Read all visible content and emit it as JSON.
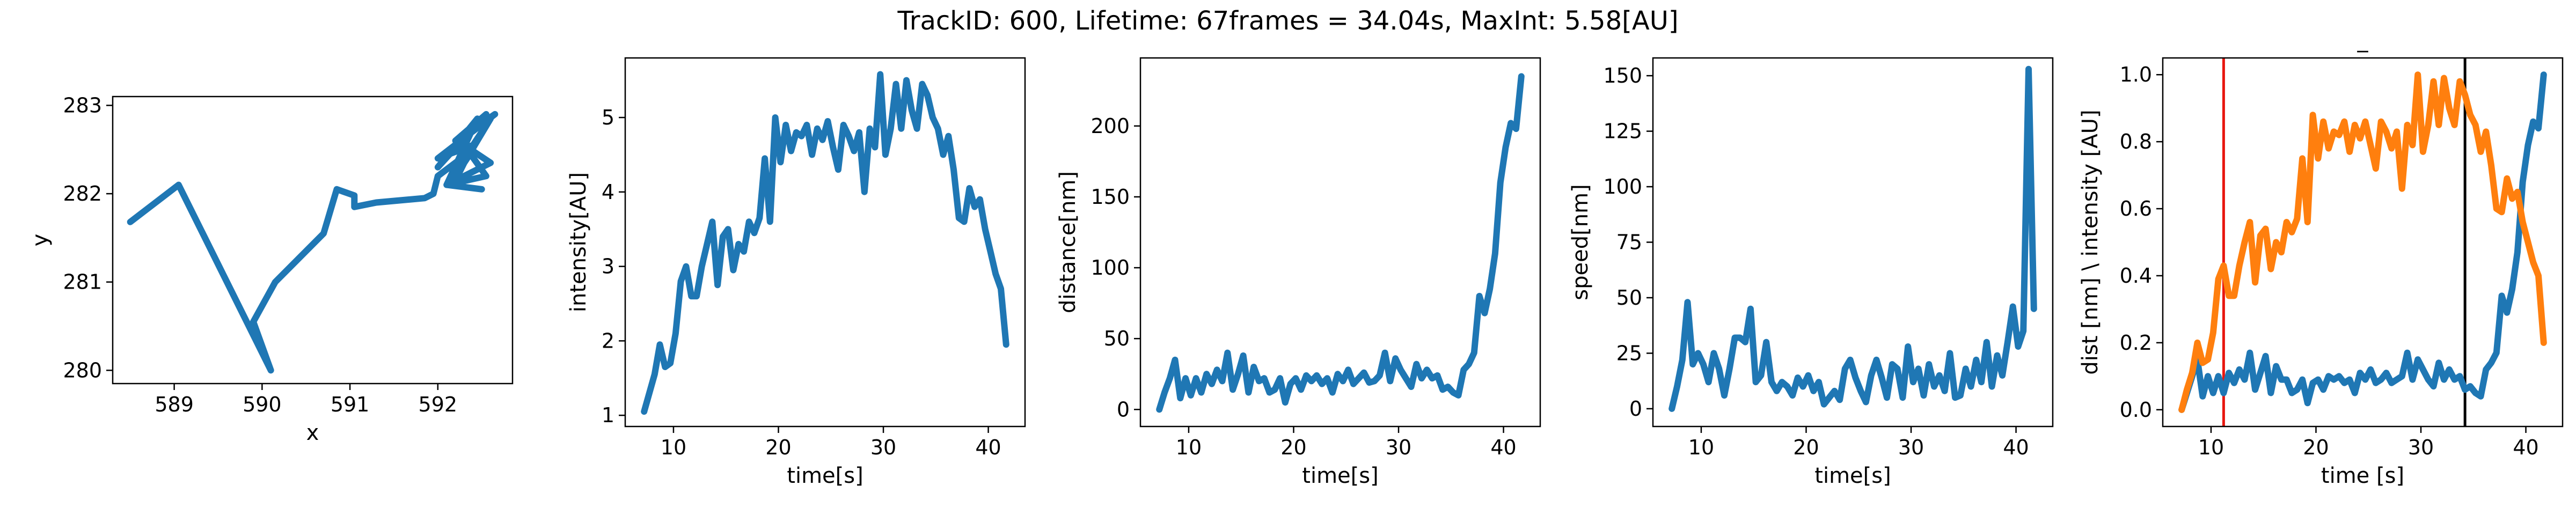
{
  "figure": {
    "suptitle": "TrackID: 600, Lifetime: 67frames = 34.04s, MaxInt: 5.58[AU]"
  },
  "colors": {
    "blue": "#1f77b4",
    "orange": "#ff7f0e",
    "red": "#e8170f",
    "black": "#000000"
  },
  "chart_data": [
    {
      "type": "line",
      "xlabel": "x",
      "ylabel": "y",
      "xlim": [
        588.3,
        592.85
      ],
      "ylim": [
        279.85,
        283.1
      ],
      "xticks": [
        589,
        590,
        591,
        592
      ],
      "yticks": [
        280,
        281,
        282,
        283
      ],
      "xtick_labels": [
        "589",
        "590",
        "591",
        "592"
      ],
      "ytick_labels": [
        "280",
        "281",
        "282",
        "283"
      ],
      "series": [
        {
          "color": "#1f77b4",
          "x": [
            588.5,
            589.05,
            590.1,
            589.9,
            590.15,
            590.7,
            590.85,
            591.05,
            591.05,
            591.3,
            591.85,
            591.95,
            592.0,
            592.4,
            592.3,
            592.6,
            592.1,
            592.45,
            592.0,
            592.55,
            592.2,
            592.65,
            592.0,
            592.4,
            592.2,
            592.6,
            592.3,
            592.55,
            592.1,
            592.5
          ],
          "y": [
            281.68,
            282.1,
            280.0,
            280.55,
            281.0,
            281.55,
            282.05,
            281.98,
            281.85,
            281.9,
            281.95,
            282.0,
            282.2,
            282.5,
            282.35,
            282.85,
            282.1,
            282.85,
            282.3,
            282.9,
            282.6,
            282.9,
            282.4,
            282.55,
            282.15,
            282.35,
            282.55,
            282.2,
            282.1,
            282.05
          ]
        }
      ]
    },
    {
      "type": "line",
      "xlabel": "time[s]",
      "ylabel": "intensity[AU]",
      "xlim": [
        5.4,
        43.5
      ],
      "ylim": [
        0.85,
        5.8
      ],
      "xticks": [
        10,
        20,
        30,
        40
      ],
      "yticks": [
        1,
        2,
        3,
        4,
        5
      ],
      "xtick_labels": [
        "10",
        "20",
        "30",
        "40"
      ],
      "ytick_labels": [
        "1",
        "2",
        "3",
        "4",
        "5"
      ],
      "series": [
        {
          "color": "#1f77b4",
          "x": [
            7.2,
            7.7,
            8.2,
            8.7,
            9.2,
            9.7,
            10.2,
            10.7,
            11.2,
            11.7,
            12.2,
            12.7,
            13.2,
            13.7,
            14.2,
            14.7,
            15.2,
            15.7,
            16.2,
            16.7,
            17.2,
            17.7,
            18.2,
            18.7,
            19.2,
            19.7,
            20.2,
            20.7,
            21.2,
            21.7,
            22.2,
            22.7,
            23.2,
            23.7,
            24.2,
            24.7,
            25.2,
            25.7,
            26.2,
            26.7,
            27.2,
            27.7,
            28.2,
            28.7,
            29.2,
            29.7,
            30.2,
            30.7,
            31.2,
            31.7,
            32.2,
            32.7,
            33.2,
            33.7,
            34.2,
            34.7,
            35.2,
            35.7,
            36.2,
            36.7,
            37.2,
            37.7,
            38.2,
            38.7,
            39.2,
            39.7,
            40.2,
            40.7,
            41.2,
            41.7
          ],
          "y": [
            1.05,
            1.3,
            1.55,
            1.95,
            1.65,
            1.7,
            2.1,
            2.8,
            3.0,
            2.6,
            2.6,
            3.0,
            3.3,
            3.6,
            2.75,
            3.4,
            3.5,
            2.95,
            3.3,
            3.2,
            3.6,
            3.45,
            3.65,
            4.45,
            3.6,
            5.0,
            4.4,
            4.9,
            4.55,
            4.8,
            4.75,
            4.9,
            4.5,
            4.85,
            4.7,
            4.95,
            4.6,
            4.3,
            4.9,
            4.75,
            4.55,
            4.8,
            4.0,
            4.85,
            4.6,
            5.58,
            4.5,
            4.85,
            5.45,
            4.85,
            5.5,
            5.1,
            4.85,
            5.45,
            5.3,
            5.0,
            4.85,
            4.5,
            4.75,
            4.3,
            3.65,
            3.6,
            4.05,
            3.8,
            3.9,
            3.5,
            3.2,
            2.9,
            2.7,
            1.95
          ],
          "x_note": ""
        }
      ]
    },
    {
      "type": "line",
      "xlabel": "time[s]",
      "ylabel": "distance[nm]",
      "xlim": [
        5.4,
        43.5
      ],
      "ylim": [
        -12,
        248
      ],
      "xticks": [
        10,
        20,
        30,
        40
      ],
      "yticks": [
        0,
        50,
        100,
        150,
        200
      ],
      "xtick_labels": [
        "10",
        "20",
        "30",
        "40"
      ],
      "ytick_labels": [
        "0",
        "50",
        "100",
        "150",
        "200"
      ],
      "series": [
        {
          "color": "#1f77b4",
          "x": [
            7.2,
            7.7,
            8.2,
            8.7,
            9.2,
            9.7,
            10.2,
            10.7,
            11.2,
            11.7,
            12.2,
            12.7,
            13.2,
            13.7,
            14.2,
            14.7,
            15.2,
            15.7,
            16.2,
            16.7,
            17.2,
            17.7,
            18.2,
            18.7,
            19.2,
            19.7,
            20.2,
            20.7,
            21.2,
            21.7,
            22.2,
            22.7,
            23.2,
            23.7,
            24.2,
            24.7,
            25.2,
            25.7,
            26.2,
            26.7,
            27.2,
            27.7,
            28.2,
            28.7,
            29.2,
            29.7,
            30.2,
            30.7,
            31.2,
            31.7,
            32.2,
            32.7,
            33.2,
            33.7,
            34.2,
            34.7,
            35.2,
            35.7,
            36.2,
            36.7,
            37.2,
            37.7,
            38.2,
            38.7,
            39.2,
            39.7,
            40.2,
            40.7,
            41.2,
            41.7
          ],
          "y": [
            0,
            12,
            22,
            35,
            8,
            22,
            10,
            22,
            12,
            25,
            18,
            28,
            20,
            40,
            14,
            25,
            38,
            12,
            30,
            20,
            22,
            12,
            14,
            22,
            5,
            18,
            22,
            14,
            24,
            20,
            24,
            18,
            22,
            12,
            25,
            20,
            28,
            18,
            22,
            26,
            19,
            20,
            24,
            40,
            20,
            36,
            28,
            22,
            16,
            32,
            22,
            28,
            22,
            24,
            14,
            16,
            12,
            10,
            28,
            32,
            40,
            80,
            68,
            85,
            110,
            160,
            185,
            202,
            198,
            235
          ]
        }
      ]
    },
    {
      "type": "line",
      "xlabel": "time[s]",
      "ylabel": "speed[nm]",
      "xlim": [
        5.4,
        43.5
      ],
      "ylim": [
        -8,
        158
      ],
      "xticks": [
        10,
        20,
        30,
        40
      ],
      "yticks": [
        0,
        25,
        50,
        75,
        100,
        125,
        150
      ],
      "xtick_labels": [
        "10",
        "20",
        "30",
        "40"
      ],
      "ytick_labels": [
        "0",
        "25",
        "50",
        "75",
        "100",
        "125",
        "150"
      ],
      "series": [
        {
          "color": "#1f77b4",
          "x": [
            7.2,
            7.7,
            8.2,
            8.7,
            9.2,
            9.7,
            10.2,
            10.7,
            11.2,
            11.7,
            12.2,
            12.7,
            13.2,
            13.7,
            14.2,
            14.7,
            15.2,
            15.7,
            16.2,
            16.7,
            17.2,
            17.7,
            18.2,
            18.7,
            19.2,
            19.7,
            20.2,
            20.7,
            21.2,
            21.7,
            22.2,
            22.7,
            23.2,
            23.7,
            24.2,
            24.7,
            25.2,
            25.7,
            26.2,
            26.7,
            27.2,
            27.7,
            28.2,
            28.7,
            29.2,
            29.7,
            30.2,
            30.7,
            31.2,
            31.7,
            32.2,
            32.7,
            33.2,
            33.7,
            34.2,
            34.7,
            35.2,
            35.7,
            36.2,
            36.7,
            37.2,
            37.7,
            38.2,
            38.7,
            39.2,
            39.7,
            40.2,
            40.7,
            41.2,
            41.7
          ],
          "y": [
            0,
            10,
            22,
            48,
            20,
            25,
            20,
            12,
            25,
            18,
            6,
            18,
            32,
            32,
            30,
            45,
            12,
            15,
            30,
            12,
            8,
            12,
            10,
            6,
            14,
            10,
            15,
            8,
            12,
            2,
            5,
            8,
            4,
            18,
            22,
            14,
            8,
            3,
            15,
            22,
            14,
            5,
            20,
            18,
            5,
            28,
            12,
            18,
            6,
            20,
            10,
            15,
            8,
            25,
            5,
            6,
            18,
            10,
            22,
            12,
            30,
            10,
            24,
            15,
            30,
            46,
            28,
            35,
            153,
            45
          ]
        }
      ]
    },
    {
      "type": "line",
      "title": "_",
      "xlabel": "time [s]",
      "ylabel": "dist [nm] \\ intensity [AU]",
      "xlim": [
        5.4,
        43.5
      ],
      "ylim": [
        -0.05,
        1.05
      ],
      "xticks": [
        10,
        20,
        30,
        40
      ],
      "yticks": [
        0.0,
        0.2,
        0.4,
        0.6,
        0.8,
        1.0
      ],
      "xtick_labels": [
        "10",
        "20",
        "30",
        "40"
      ],
      "ytick_labels": [
        "0.0",
        "0.2",
        "0.4",
        "0.6",
        "0.8",
        "1.0"
      ],
      "vlines": [
        {
          "x": 11.2,
          "color": "#e8170f"
        },
        {
          "x": 34.2,
          "color": "#000000"
        }
      ],
      "series": [
        {
          "color": "#1f77b4",
          "x": [
            7.2,
            7.7,
            8.2,
            8.7,
            9.2,
            9.7,
            10.2,
            10.7,
            11.2,
            11.7,
            12.2,
            12.7,
            13.2,
            13.7,
            14.2,
            14.7,
            15.2,
            15.7,
            16.2,
            16.7,
            17.2,
            17.7,
            18.2,
            18.7,
            19.2,
            19.7,
            20.2,
            20.7,
            21.2,
            21.7,
            22.2,
            22.7,
            23.2,
            23.7,
            24.2,
            24.7,
            25.2,
            25.7,
            26.2,
            26.7,
            27.2,
            27.7,
            28.2,
            28.7,
            29.2,
            29.7,
            30.2,
            30.7,
            31.2,
            31.7,
            32.2,
            32.7,
            33.2,
            33.7,
            34.2,
            34.7,
            35.2,
            35.7,
            36.2,
            36.7,
            37.2,
            37.7,
            38.2,
            38.7,
            39.2,
            39.7,
            40.2,
            40.7,
            41.2,
            41.7
          ],
          "y": [
            0,
            0.05,
            0.1,
            0.15,
            0.04,
            0.1,
            0.05,
            0.1,
            0.05,
            0.11,
            0.08,
            0.12,
            0.09,
            0.17,
            0.06,
            0.11,
            0.16,
            0.05,
            0.13,
            0.09,
            0.09,
            0.05,
            0.06,
            0.09,
            0.02,
            0.08,
            0.09,
            0.06,
            0.1,
            0.09,
            0.1,
            0.08,
            0.09,
            0.05,
            0.11,
            0.09,
            0.12,
            0.08,
            0.09,
            0.11,
            0.08,
            0.09,
            0.1,
            0.17,
            0.09,
            0.15,
            0.12,
            0.09,
            0.07,
            0.14,
            0.09,
            0.12,
            0.09,
            0.1,
            0.06,
            0.07,
            0.05,
            0.04,
            0.12,
            0.14,
            0.17,
            0.34,
            0.29,
            0.36,
            0.47,
            0.68,
            0.79,
            0.86,
            0.84,
            1.0
          ]
        },
        {
          "color": "#ff7f0e",
          "x": [
            7.2,
            7.7,
            8.2,
            8.7,
            9.2,
            9.7,
            10.2,
            10.7,
            11.2,
            11.7,
            12.2,
            12.7,
            13.2,
            13.7,
            14.2,
            14.7,
            15.2,
            15.7,
            16.2,
            16.7,
            17.2,
            17.7,
            18.2,
            18.7,
            19.2,
            19.7,
            20.2,
            20.7,
            21.2,
            21.7,
            22.2,
            22.7,
            23.2,
            23.7,
            24.2,
            24.7,
            25.2,
            25.7,
            26.2,
            26.7,
            27.2,
            27.7,
            28.2,
            28.7,
            29.2,
            29.7,
            30.2,
            30.7,
            31.2,
            31.7,
            32.2,
            32.7,
            33.2,
            33.7,
            34.2,
            34.7,
            35.2,
            35.7,
            36.2,
            36.7,
            37.2,
            37.7,
            38.2,
            38.7,
            39.2,
            39.7,
            40.2,
            40.7,
            41.2,
            41.7
          ],
          "y": [
            0.0,
            0.06,
            0.11,
            0.2,
            0.14,
            0.15,
            0.23,
            0.39,
            0.43,
            0.34,
            0.34,
            0.43,
            0.5,
            0.56,
            0.38,
            0.52,
            0.54,
            0.42,
            0.5,
            0.47,
            0.56,
            0.53,
            0.57,
            0.75,
            0.56,
            0.88,
            0.75,
            0.86,
            0.78,
            0.83,
            0.82,
            0.86,
            0.77,
            0.85,
            0.81,
            0.86,
            0.79,
            0.72,
            0.86,
            0.83,
            0.78,
            0.83,
            0.66,
            0.85,
            0.79,
            1.0,
            0.77,
            0.85,
            0.98,
            0.85,
            0.99,
            0.9,
            0.85,
            0.98,
            0.94,
            0.88,
            0.85,
            0.77,
            0.83,
            0.73,
            0.6,
            0.59,
            0.69,
            0.63,
            0.65,
            0.56,
            0.5,
            0.44,
            0.4,
            0.2
          ]
        }
      ]
    }
  ]
}
